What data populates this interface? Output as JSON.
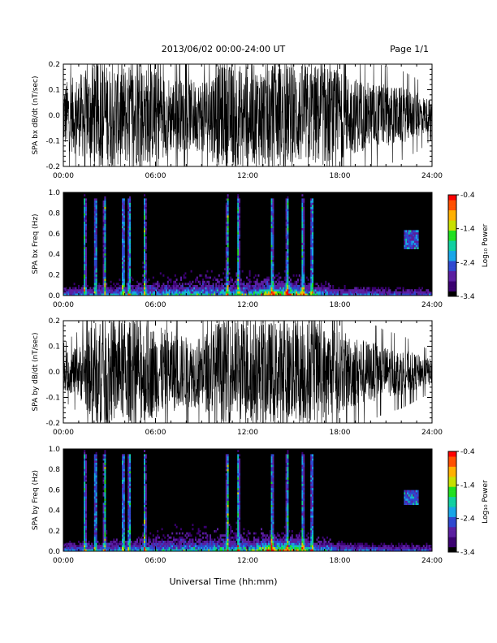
{
  "header": {
    "title": "2013/06/02  00:00-24:00 UT",
    "page": "Page 1/1"
  },
  "footer": {
    "xlabel": "Universal Time (hh:mm)"
  },
  "colorbar": {
    "label": "Log₁₀ Power",
    "ticks": [
      "-0.4",
      "-1.4",
      "-2.4",
      "-3.4"
    ],
    "range": [
      -3.4,
      -0.4
    ],
    "colors": [
      "#000000",
      "#3a0070",
      "#5a1ea0",
      "#2f48d0",
      "#18a6e8",
      "#10d0a0",
      "#20e020",
      "#c8e000",
      "#ffb000",
      "#ff5000",
      "#ff0000"
    ]
  },
  "chart_data": [
    {
      "type": "line",
      "title": "",
      "ylabel": "SPA bx dB/dt (nT/sec)",
      "xlabel": "",
      "x_ticks": [
        "00:00",
        "06:00",
        "12:00",
        "18:00",
        "24:00"
      ],
      "xlim": [
        0,
        24
      ],
      "ylim": [
        -0.2,
        0.2
      ],
      "y_ticks": [
        "-0.2",
        "-0.1",
        "0.0",
        "0.1",
        "0.2"
      ],
      "series": [
        {
          "x": [
            0,
            1,
            2,
            3,
            4,
            5,
            6,
            7,
            8,
            9,
            10,
            11,
            12,
            13,
            14,
            15,
            16,
            17,
            18,
            19,
            20,
            21,
            22,
            23,
            24
          ],
          "envelope": [
            0.13,
            0.16,
            0.2,
            0.2,
            0.2,
            0.2,
            0.18,
            0.15,
            0.14,
            0.14,
            0.2,
            0.2,
            0.2,
            0.2,
            0.2,
            0.2,
            0.2,
            0.2,
            0.17,
            0.15,
            0.13,
            0.12,
            0.11,
            0.09,
            0.06
          ]
        }
      ]
    },
    {
      "type": "heatmap",
      "title": "",
      "ylabel": "SPA bx Freq (Hz)",
      "xlabel": "",
      "x_ticks": [
        "00:00",
        "06:00",
        "12:00",
        "18:00",
        "24:00"
      ],
      "xlim": [
        0,
        24
      ],
      "ylim": [
        0,
        1.0
      ],
      "y_ticks": [
        "0.0",
        "0.2",
        "0.4",
        "0.6",
        "0.8",
        "1.0"
      ],
      "background_log_power": -3.4,
      "bursts_hours": [
        1.4,
        2.1,
        2.7,
        3.9,
        4.3,
        5.3,
        10.7,
        11.4,
        13.6,
        14.6,
        15.6,
        16.2
      ],
      "low_freq_peak_hours": [
        13.5,
        14.5,
        15.2
      ],
      "patch": {
        "x": [
          22.2,
          23.1
        ],
        "y": [
          0.45,
          0.65
        ]
      }
    },
    {
      "type": "line",
      "title": "",
      "ylabel": "SPA by dB/dt (nT/sec)",
      "xlabel": "",
      "x_ticks": [
        "00:00",
        "06:00",
        "12:00",
        "18:00",
        "24:00"
      ],
      "xlim": [
        0,
        24
      ],
      "ylim": [
        -0.2,
        0.2
      ],
      "y_ticks": [
        "-0.2",
        "-0.1",
        "0.0",
        "0.1",
        "0.2"
      ],
      "series": [
        {
          "x": [
            0,
            1,
            2,
            3,
            4,
            5,
            6,
            7,
            8,
            9,
            10,
            11,
            12,
            13,
            14,
            15,
            16,
            17,
            18,
            19,
            20,
            21,
            22,
            23,
            24
          ],
          "envelope": [
            0.07,
            0.1,
            0.2,
            0.2,
            0.2,
            0.2,
            0.18,
            0.16,
            0.14,
            0.14,
            0.2,
            0.2,
            0.2,
            0.2,
            0.2,
            0.2,
            0.2,
            0.18,
            0.16,
            0.14,
            0.12,
            0.1,
            0.09,
            0.07,
            0.05
          ]
        }
      ]
    },
    {
      "type": "heatmap",
      "title": "",
      "ylabel": "SPA by Freq (Hz)",
      "xlabel": "",
      "x_ticks": [
        "00:00",
        "06:00",
        "12:00",
        "18:00",
        "24:00"
      ],
      "xlim": [
        0,
        24
      ],
      "ylim": [
        0,
        1.0
      ],
      "y_ticks": [
        "0.0",
        "0.2",
        "0.4",
        "0.6",
        "0.8",
        "1.0"
      ],
      "background_log_power": -3.4,
      "bursts_hours": [
        1.4,
        2.1,
        2.7,
        3.9,
        4.3,
        5.3,
        10.7,
        11.4,
        13.6,
        14.6,
        15.6,
        16.2
      ],
      "low_freq_peak_hours": [
        13.5,
        14.5,
        15.2
      ],
      "patch": {
        "x": [
          22.2,
          23.1
        ],
        "y": [
          0.45,
          0.6
        ]
      }
    }
  ]
}
